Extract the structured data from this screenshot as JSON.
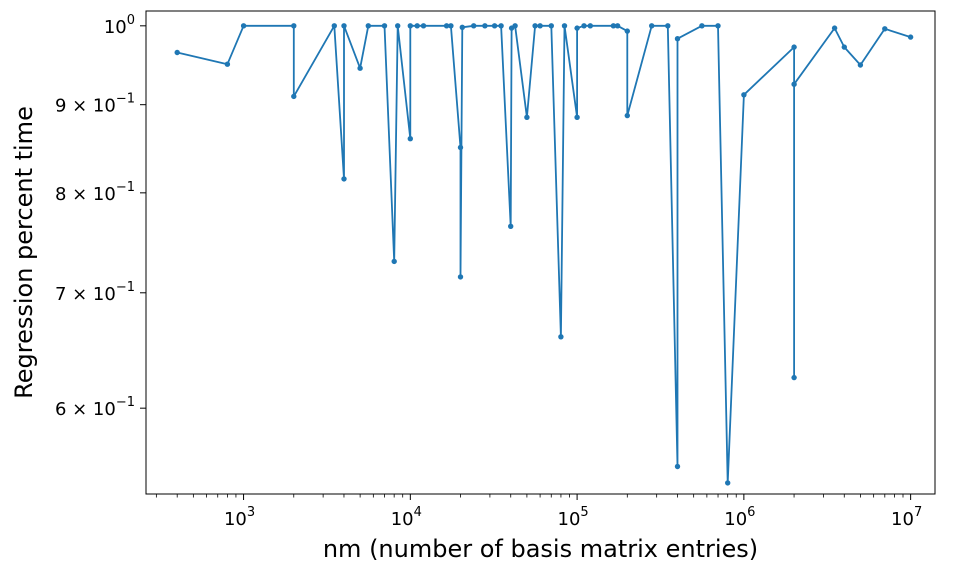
{
  "chart_data": {
    "type": "line",
    "xlabel": "nm (number of basis matrix entries)",
    "ylabel": "Regression percent time",
    "x_scale": "log",
    "y_scale": "log",
    "xlim": [
      260,
      14000000
    ],
    "ylim": [
      0.535,
      1.02
    ],
    "grid": false,
    "color": "#1f77b4",
    "marker": "circle",
    "x_ticks": [
      {
        "value": 1000,
        "base": "10",
        "exp": "3"
      },
      {
        "value": 10000,
        "base": "10",
        "exp": "4"
      },
      {
        "value": 100000,
        "base": "10",
        "exp": "5"
      },
      {
        "value": 1000000,
        "base": "10",
        "exp": "6"
      },
      {
        "value": 10000000,
        "base": "10",
        "exp": "7"
      }
    ],
    "y_ticks": [
      {
        "value": 1.0,
        "label": "10",
        "exp": "0",
        "prefix": ""
      },
      {
        "value": 0.9,
        "label": "10",
        "exp": "−1",
        "prefix": "9 × "
      },
      {
        "value": 0.8,
        "label": "10",
        "exp": "−1",
        "prefix": "8 × "
      },
      {
        "value": 0.7,
        "label": "10",
        "exp": "−1",
        "prefix": "7 × "
      },
      {
        "value": 0.6,
        "label": "10",
        "exp": "−1",
        "prefix": "6 × "
      }
    ],
    "x": [
      400,
      800,
      1000,
      2000,
      2000,
      3500,
      4000,
      4000,
      5000,
      5600,
      7000,
      8000,
      8400,
      10000,
      10000,
      11000,
      12000,
      16500,
      17500,
      20000,
      20000,
      20500,
      24000,
      28000,
      32000,
      35000,
      40000,
      40500,
      42500,
      50000,
      56000,
      60000,
      70000,
      80000,
      84000,
      100000,
      100000,
      110000,
      120000,
      165000,
      175000,
      200000,
      200000,
      280000,
      350000,
      400000,
      400000,
      560000,
      700000,
      800000,
      1000000,
      2000000,
      2000000,
      2000000,
      3500000,
      4000000,
      5000000,
      7000000,
      10000000
    ],
    "y": [
      0.965,
      0.95,
      1.0,
      1.0,
      0.91,
      1.0,
      0.815,
      1.0,
      0.945,
      1.0,
      1.0,
      0.73,
      1.0,
      0.86,
      1.0,
      1.0,
      1.0,
      1.0,
      1.0,
      0.85,
      0.715,
      0.998,
      1.0,
      1.0,
      1.0,
      1.0,
      0.765,
      0.997,
      1.0,
      0.885,
      1.0,
      1.0,
      1.0,
      0.66,
      1.0,
      0.885,
      0.997,
      1.0,
      1.0,
      1.0,
      1.0,
      0.993,
      0.887,
      1.0,
      1.0,
      0.555,
      0.983,
      1.0,
      1.0,
      0.543,
      0.912,
      0.972,
      0.625,
      0.925,
      0.997,
      0.972,
      0.949,
      0.996,
      0.985
    ]
  }
}
